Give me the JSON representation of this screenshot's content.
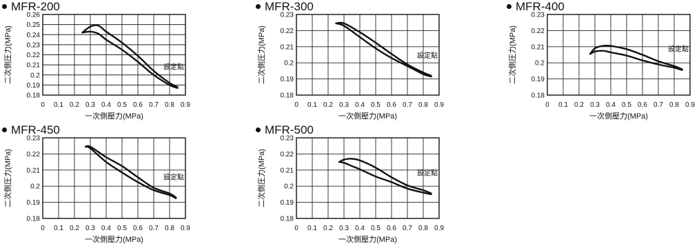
{
  "charts": [
    {
      "title": "MFR-200",
      "chart_data": {
        "type": "line",
        "title": "MFR-200",
        "xlabel": "一次側壓力(MPa)",
        "ylabel": "二次側圧力(MPa)",
        "xlim": [
          0,
          0.9
        ],
        "ylim": [
          0.18,
          0.26
        ],
        "x_ticks": [
          "0",
          "0.1",
          "0.2",
          "0.3",
          "0.4",
          "0.5",
          "0.6",
          "0.7",
          "0.8",
          "0.9"
        ],
        "y_ticks": [
          "0.18",
          "0.19",
          "0.2",
          "0.21",
          "0.22",
          "0.23",
          "0.24",
          "0.25",
          "0.26"
        ],
        "grid": true,
        "annotation": "設定點",
        "series": [
          {
            "values": [
              [
                0.25,
                0.242
              ],
              [
                0.3,
                0.248
              ],
              [
                0.35,
                0.249
              ],
              [
                0.4,
                0.243
              ],
              [
                0.5,
                0.232
              ],
              [
                0.6,
                0.219
              ],
              [
                0.7,
                0.204
              ],
              [
                0.8,
                0.192
              ],
              [
                0.85,
                0.188
              ]
            ]
          },
          {
            "values": [
              [
                0.25,
                0.242
              ],
              [
                0.3,
                0.243
              ],
              [
                0.35,
                0.241
              ],
              [
                0.4,
                0.235
              ],
              [
                0.5,
                0.225
              ],
              [
                0.6,
                0.213
              ],
              [
                0.7,
                0.2
              ],
              [
                0.8,
                0.19
              ],
              [
                0.85,
                0.187
              ]
            ]
          }
        ]
      }
    },
    {
      "title": "MFR-300",
      "chart_data": {
        "type": "line",
        "title": "MFR-300",
        "xlabel": "一次側壓力(MPa)",
        "ylabel": "二次側圧力(MPa)",
        "xlim": [
          0,
          0.9
        ],
        "ylim": [
          0.18,
          0.23
        ],
        "x_ticks": [
          "0",
          "0.1",
          "0.2",
          "0.3",
          "0.4",
          "0.5",
          "0.6",
          "0.7",
          "0.8",
          "0.9"
        ],
        "y_ticks": [
          "0.18",
          "0.19",
          "0.2",
          "0.21",
          "0.22",
          "0.23"
        ],
        "grid": true,
        "annotation": "設定點",
        "series": [
          {
            "values": [
              [
                0.25,
                0.2245
              ],
              [
                0.3,
                0.2245
              ],
              [
                0.4,
                0.219
              ],
              [
                0.5,
                0.2125
              ],
              [
                0.6,
                0.2055
              ],
              [
                0.7,
                0.199
              ],
              [
                0.8,
                0.194
              ],
              [
                0.85,
                0.192
              ]
            ]
          },
          {
            "values": [
              [
                0.25,
                0.2245
              ],
              [
                0.3,
                0.223
              ],
              [
                0.4,
                0.216
              ],
              [
                0.5,
                0.209
              ],
              [
                0.6,
                0.203
              ],
              [
                0.7,
                0.198
              ],
              [
                0.8,
                0.193
              ],
              [
                0.85,
                0.1915
              ]
            ]
          }
        ]
      }
    },
    {
      "title": "MFR-400",
      "chart_data": {
        "type": "line",
        "title": "MFR-400",
        "xlabel": "一次側壓力(MPa)",
        "ylabel": "二次側圧力(MPa)",
        "xlim": [
          0,
          0.9
        ],
        "ylim": [
          0.18,
          0.23
        ],
        "x_ticks": [
          "0",
          "0.1",
          "0.2",
          "0.3",
          "0.4",
          "0.5",
          "0.6",
          "0.7",
          "0.8",
          "0.9"
        ],
        "y_ticks": [
          "0.18",
          "0.19",
          "0.2",
          "0.21",
          "0.22",
          "0.23"
        ],
        "grid": true,
        "annotation": "設定點",
        "series": [
          {
            "values": [
              [
                0.27,
                0.2055
              ],
              [
                0.3,
                0.209
              ],
              [
                0.35,
                0.2105
              ],
              [
                0.4,
                0.2105
              ],
              [
                0.5,
                0.2085
              ],
              [
                0.6,
                0.205
              ],
              [
                0.7,
                0.201
              ],
              [
                0.8,
                0.198
              ],
              [
                0.85,
                0.196
              ]
            ]
          },
          {
            "values": [
              [
                0.27,
                0.2055
              ],
              [
                0.3,
                0.207
              ],
              [
                0.35,
                0.2075
              ],
              [
                0.4,
                0.2065
              ],
              [
                0.5,
                0.2045
              ],
              [
                0.6,
                0.2015
              ],
              [
                0.7,
                0.199
              ],
              [
                0.8,
                0.197
              ],
              [
                0.85,
                0.1955
              ]
            ]
          }
        ]
      }
    },
    {
      "title": "MFR-450",
      "chart_data": {
        "type": "line",
        "title": "MFR-450",
        "xlabel": "一次側壓力(MPa)",
        "ylabel": "二次側圧力(MPa)",
        "xlim": [
          0,
          0.9
        ],
        "ylim": [
          0.18,
          0.23
        ],
        "x_ticks": [
          "0",
          "0.1",
          "0.2",
          "0.3",
          "0.4",
          "0.5",
          "0.6",
          "0.7",
          "0.8",
          "0.9"
        ],
        "y_ticks": [
          "0.18",
          "0.19",
          "0.2",
          "0.21",
          "0.22",
          "0.23"
        ],
        "grid": true,
        "annotation": "設定點",
        "series": [
          {
            "values": [
              [
                0.27,
                0.2245
              ],
              [
                0.3,
                0.2245
              ],
              [
                0.4,
                0.218
              ],
              [
                0.5,
                0.2125
              ],
              [
                0.6,
                0.2055
              ],
              [
                0.7,
                0.199
              ],
              [
                0.8,
                0.1955
              ],
              [
                0.84,
                0.193
              ]
            ]
          },
          {
            "values": [
              [
                0.27,
                0.2245
              ],
              [
                0.3,
                0.2235
              ],
              [
                0.4,
                0.215
              ],
              [
                0.5,
                0.2085
              ],
              [
                0.6,
                0.2025
              ],
              [
                0.7,
                0.1975
              ],
              [
                0.8,
                0.1945
              ],
              [
                0.84,
                0.1925
              ]
            ]
          }
        ]
      }
    },
    {
      "title": "MFR-500",
      "chart_data": {
        "type": "line",
        "title": "MFR-500",
        "xlabel": "一次側壓力(MPa)",
        "ylabel": "二次側圧力(MPa)",
        "xlim": [
          0,
          0.9
        ],
        "ylim": [
          0.18,
          0.23
        ],
        "x_ticks": [
          "0",
          "0.1",
          "0.2",
          "0.3",
          "0.4",
          "0.5",
          "0.6",
          "0.7",
          "0.8",
          "0.9"
        ],
        "y_ticks": [
          "0.18",
          "0.19",
          "0.2",
          "0.21",
          "0.22",
          "0.23"
        ],
        "grid": true,
        "annotation": "設定點",
        "series": [
          {
            "values": [
              [
                0.27,
                0.215
              ],
              [
                0.3,
                0.2165
              ],
              [
                0.35,
                0.217
              ],
              [
                0.4,
                0.216
              ],
              [
                0.5,
                0.2115
              ],
              [
                0.6,
                0.2055
              ],
              [
                0.7,
                0.2005
              ],
              [
                0.8,
                0.1975
              ],
              [
                0.85,
                0.1955
              ]
            ]
          },
          {
            "values": [
              [
                0.27,
                0.215
              ],
              [
                0.3,
                0.2145
              ],
              [
                0.35,
                0.2125
              ],
              [
                0.4,
                0.2105
              ],
              [
                0.5,
                0.206
              ],
              [
                0.6,
                0.2025
              ],
              [
                0.7,
                0.1985
              ],
              [
                0.8,
                0.196
              ],
              [
                0.85,
                0.195
              ]
            ]
          }
        ]
      }
    }
  ]
}
